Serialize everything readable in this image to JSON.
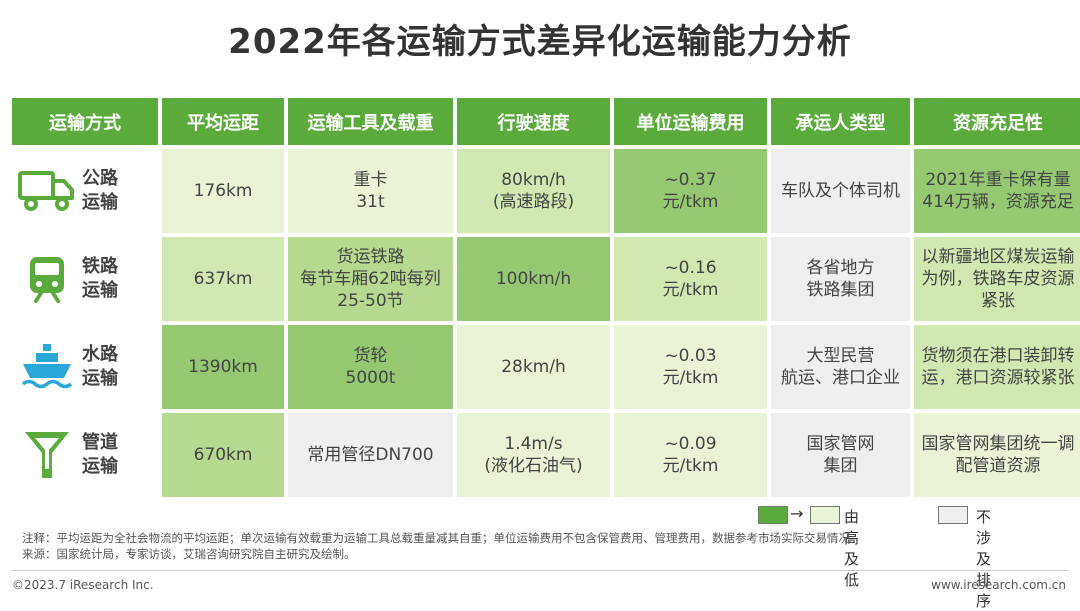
{
  "title": "2022年各运输方式差异化运输能力分析",
  "headers": [
    "运输方式",
    "平均运距",
    "运输工具及载重",
    "行驶速度",
    "单位运输费用",
    "承运人类型",
    "资源充足性"
  ],
  "rows": [
    {
      "mode": "公路\n运输",
      "icon": "truck-icon",
      "distance": "176km",
      "vehicle": "重卡\n31t",
      "speed": "80km/h\n(高速路段)",
      "cost": "~0.37\n元/tkm",
      "carrier": "车队及个体司机",
      "resource": "2021年重卡保有量\n414万辆，资源充足"
    },
    {
      "mode": "铁路\n运输",
      "icon": "train-icon",
      "distance": "637km",
      "vehicle": "货运铁路\n每节车厢62吨每列\n25-50节",
      "speed": "100km/h",
      "cost": "~0.16\n元/tkm",
      "carrier": "各省地方\n铁路集团",
      "resource": "以新疆地区煤炭运输\n为例，铁路车皮资源\n紧张"
    },
    {
      "mode": "水路\n运输",
      "icon": "ship-icon",
      "distance": "1390km",
      "vehicle": "货轮\n5000t",
      "speed": "28km/h",
      "cost": "~0.03\n元/tkm",
      "carrier": "大型民营\n航运、港口企业",
      "resource": "货物须在港口装卸转\n运，港口资源较紧张"
    },
    {
      "mode": "管道\n运输",
      "icon": "pipeline-icon",
      "distance": "670km",
      "vehicle": "常用管径DN700",
      "speed": "1.4m/s\n(液化石油气)",
      "cost": "~0.09\n元/tkm",
      "carrier": "国家管网\n集团",
      "resource": "国家管网集团统一调\n配管道资源"
    }
  ],
  "legend": {
    "arrow": "→",
    "high_low": "由高及低",
    "no_rank": "不涉及排序"
  },
  "notes": {
    "note": "注释：平均运距为全社会物流的平均运距；单次运输有效载重为运输工具总载重量减其自重；单位运输费用不包含保管费用、管理费用，数据参考市场实际交易情况。",
    "source": "来源：国家统计局，专家访谈，艾瑞咨询研究院自主研究及绘制。"
  },
  "footer": {
    "copyright": "©2023.7 iResearch Inc.",
    "website": "www.iresearch.com.cn"
  },
  "colors": {
    "header": "#5aab3c",
    "level1": "#e9f4d6",
    "level2": "#d1e8b1",
    "level3": "#b7d98f",
    "level4": "#95c971",
    "not_ranked": "#efefef",
    "icon": "#5aab3c",
    "ship_icon": "#29a8d8"
  }
}
